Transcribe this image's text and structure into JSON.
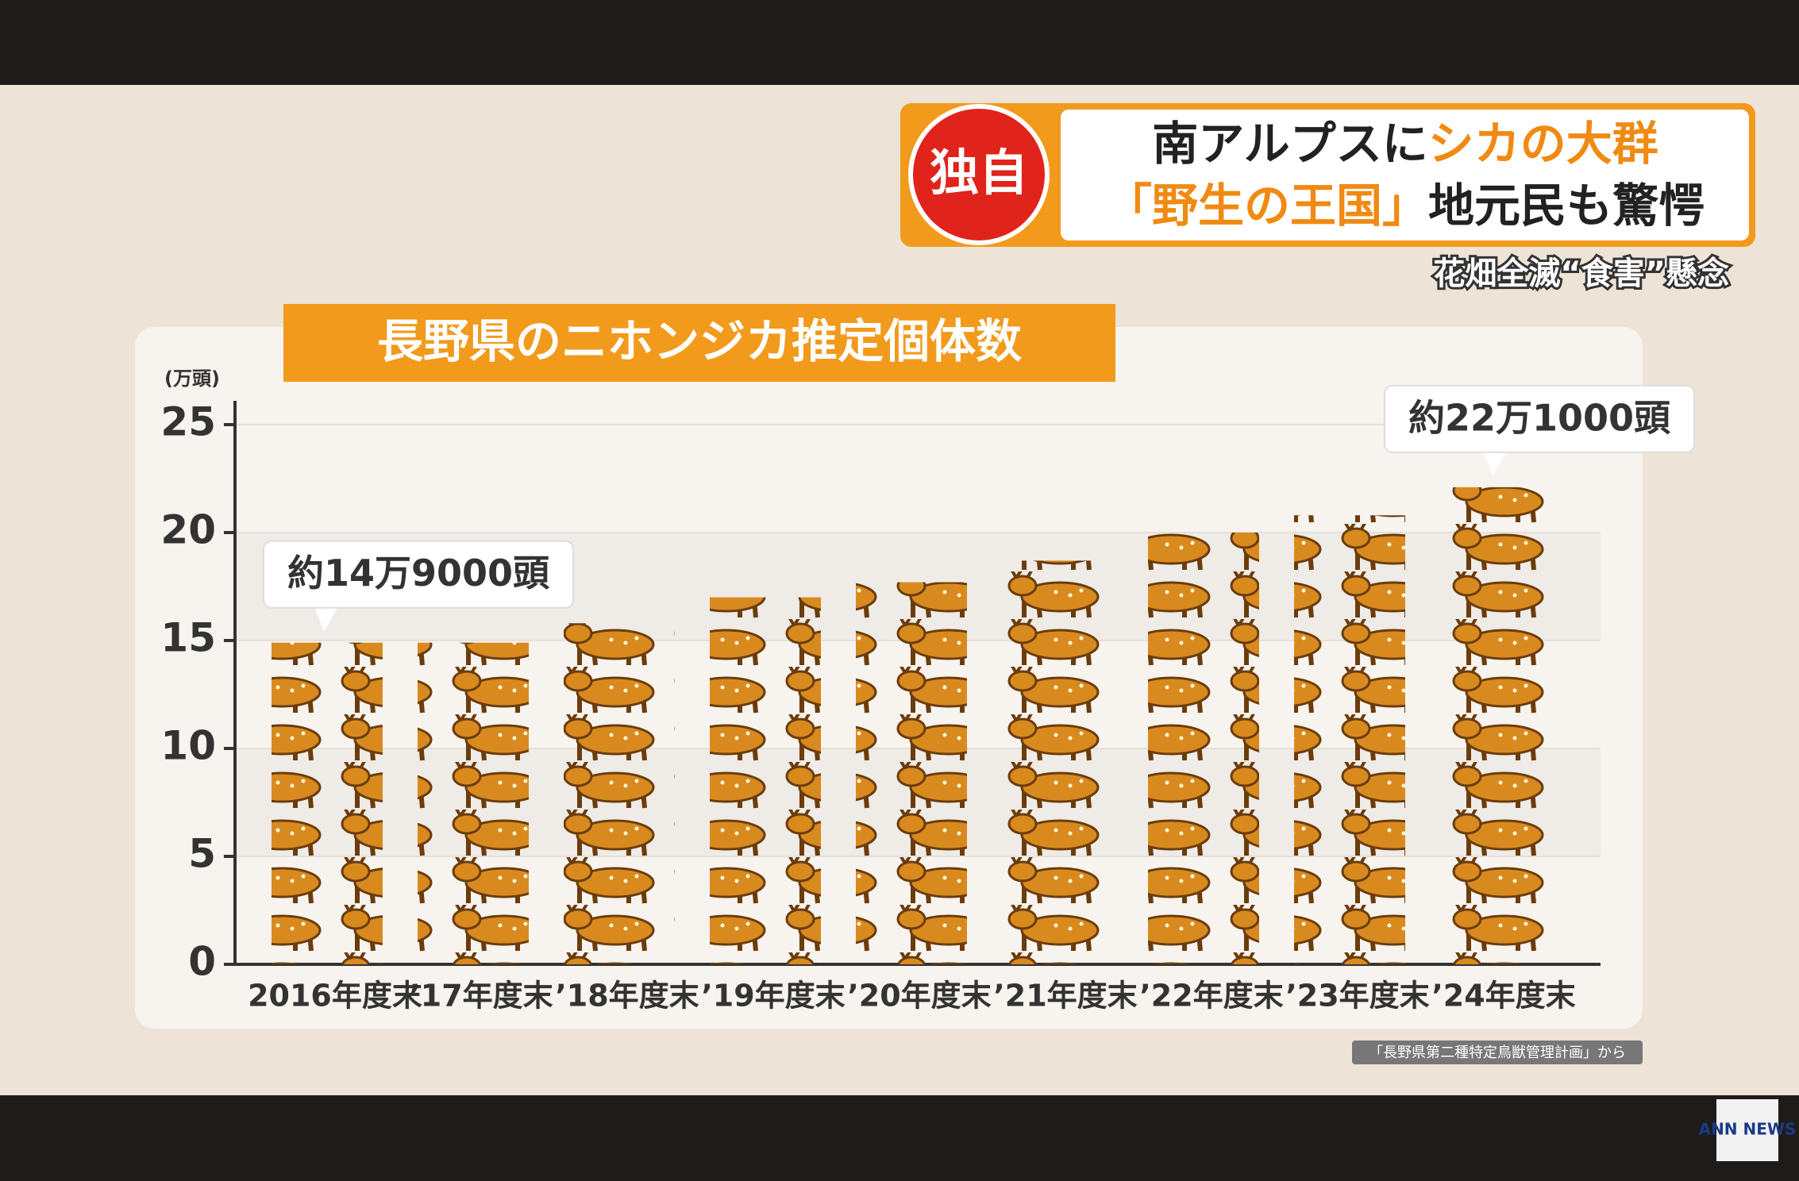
{
  "chart_data": {
    "type": "bar",
    "badge": "独自",
    "headline_1a": "南アルプスに",
    "headline_1b": "シカの大群",
    "headline_2a": "「野生の王国」",
    "headline_2b": "地元民も驚愕",
    "subheadline": "花畑全滅“食害”懸念",
    "title": "長野県のニホンジカ推定個体数",
    "y_label": "(万頭)",
    "categories": [
      "2016年度末",
      "’17年度末",
      "’18年度末",
      "’19年度末",
      "’20年度末",
      "’21年度末",
      "’22年度末",
      "’23年度末",
      "’24年度末"
    ],
    "values": [
      14.9,
      14.9,
      15.8,
      17.0,
      17.7,
      18.7,
      20.0,
      20.8,
      22.1
    ],
    "value_labels": [
      "約14万9000頭",
      null,
      null,
      null,
      null,
      null,
      null,
      null,
      "約22万1000頭"
    ],
    "color": "#d98a1f",
    "ylim": [
      0,
      25
    ],
    "yticks": [
      0,
      5,
      10,
      15,
      20,
      25
    ],
    "grid": true,
    "source": "「長野県第二種特定鳥獣管理計画」から",
    "logo": "ANN NEWS"
  }
}
